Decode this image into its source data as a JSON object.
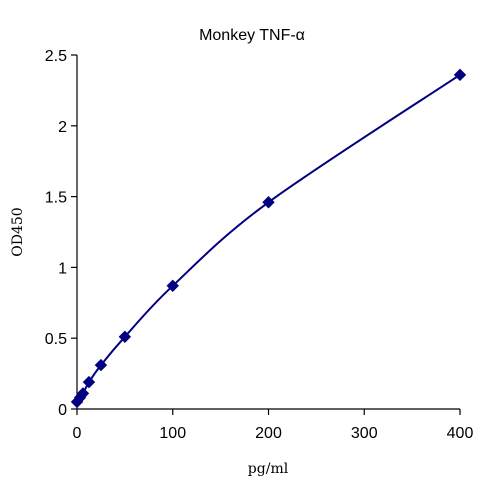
{
  "chart_data": {
    "type": "scatter",
    "title": "Monkey TNF-α",
    "xlabel": "pg/ml",
    "ylabel": "OD450",
    "xlim": [
      0,
      400
    ],
    "ylim": [
      0,
      2.5
    ],
    "x_ticks": [
      "0",
      "100",
      "200",
      "300",
      "400"
    ],
    "y_ticks": [
      "0",
      "0.5",
      "1",
      "1.5",
      "2",
      "2.5"
    ],
    "grid": false,
    "legend": "none",
    "series": [
      {
        "marker": "diamond",
        "color": "#000080",
        "fit_line": true,
        "points": [
          {
            "x": 0,
            "y": 0.05
          },
          {
            "x": 3.125,
            "y": 0.08
          },
          {
            "x": 6.25,
            "y": 0.11
          },
          {
            "x": 12.5,
            "y": 0.19
          },
          {
            "x": 25,
            "y": 0.31
          },
          {
            "x": 50,
            "y": 0.51
          },
          {
            "x": 100,
            "y": 0.87
          },
          {
            "x": 200,
            "y": 1.46
          },
          {
            "x": 400,
            "y": 2.36
          }
        ]
      }
    ]
  }
}
